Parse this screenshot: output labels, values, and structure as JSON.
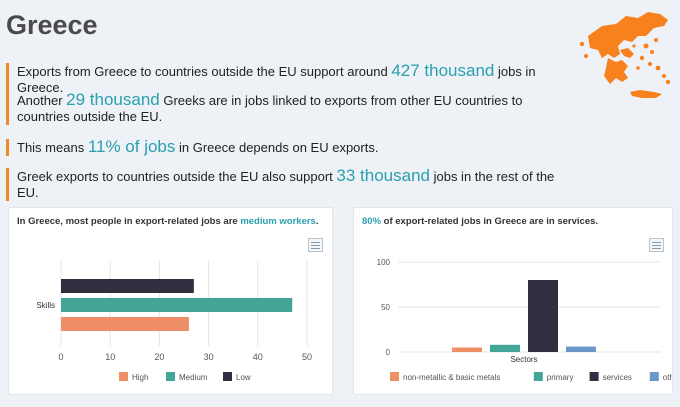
{
  "page": {
    "title": "Greece"
  },
  "facts": [
    {
      "pre": "Exports from Greece to countries outside the EU support around ",
      "hl": "427 thousand",
      "post": " jobs in Greece."
    },
    {
      "pre": "Another ",
      "hl": "29 thousand",
      "post": " Greeks are in jobs linked to exports from other EU countries to countries outside the EU."
    },
    {
      "pre": "This means ",
      "hl": "11% of jobs",
      "post": " in Greece depends on EU exports."
    },
    {
      "pre": "Greek exports to countries outside the EU also support ",
      "hl": "33 thousand",
      "post": " jobs in the rest of the EU."
    }
  ],
  "cards": {
    "skills": {
      "title_pre": "In Greece, most people in export-related jobs are ",
      "title_accent": "medium workers",
      "title_post": "."
    },
    "sectors": {
      "title_accent": "80%",
      "title_post": " of export-related jobs in Greece are in services."
    }
  },
  "colors": {
    "accent": "#2a9fb0",
    "bar_orange": "#ef8f68",
    "bar_teal": "#43a597",
    "bar_dark": "#2f2f3f",
    "bar_blue": "#6a98c9",
    "map": "#f7811d"
  },
  "chart_data": [
    {
      "type": "bar",
      "orientation": "horizontal",
      "categories": [
        "Skills"
      ],
      "series": [
        {
          "name": "High",
          "values": [
            26
          ],
          "color": "#ef8f68"
        },
        {
          "name": "Medium",
          "values": [
            47
          ],
          "color": "#43a597"
        },
        {
          "name": "Low",
          "values": [
            27
          ],
          "color": "#2f2f3f"
        }
      ],
      "xlim": [
        0,
        50
      ],
      "xticks": [
        "0",
        "10",
        "20",
        "30",
        "40",
        "50"
      ],
      "grid": true,
      "legend": "bottom"
    },
    {
      "type": "bar",
      "categories": [
        "Sectors"
      ],
      "series": [
        {
          "name": "non-metallic & basic metals",
          "values": [
            5
          ],
          "color": "#ef8f68"
        },
        {
          "name": "primary",
          "values": [
            8
          ],
          "color": "#43a597"
        },
        {
          "name": "services",
          "values": [
            80
          ],
          "color": "#2f2f3f"
        },
        {
          "name": "others",
          "values": [
            6
          ],
          "color": "#6a98c9"
        }
      ],
      "ylim": [
        0,
        100
      ],
      "yticks": [
        "0",
        "50",
        "100"
      ],
      "grid": true,
      "legend": "bottom"
    }
  ]
}
